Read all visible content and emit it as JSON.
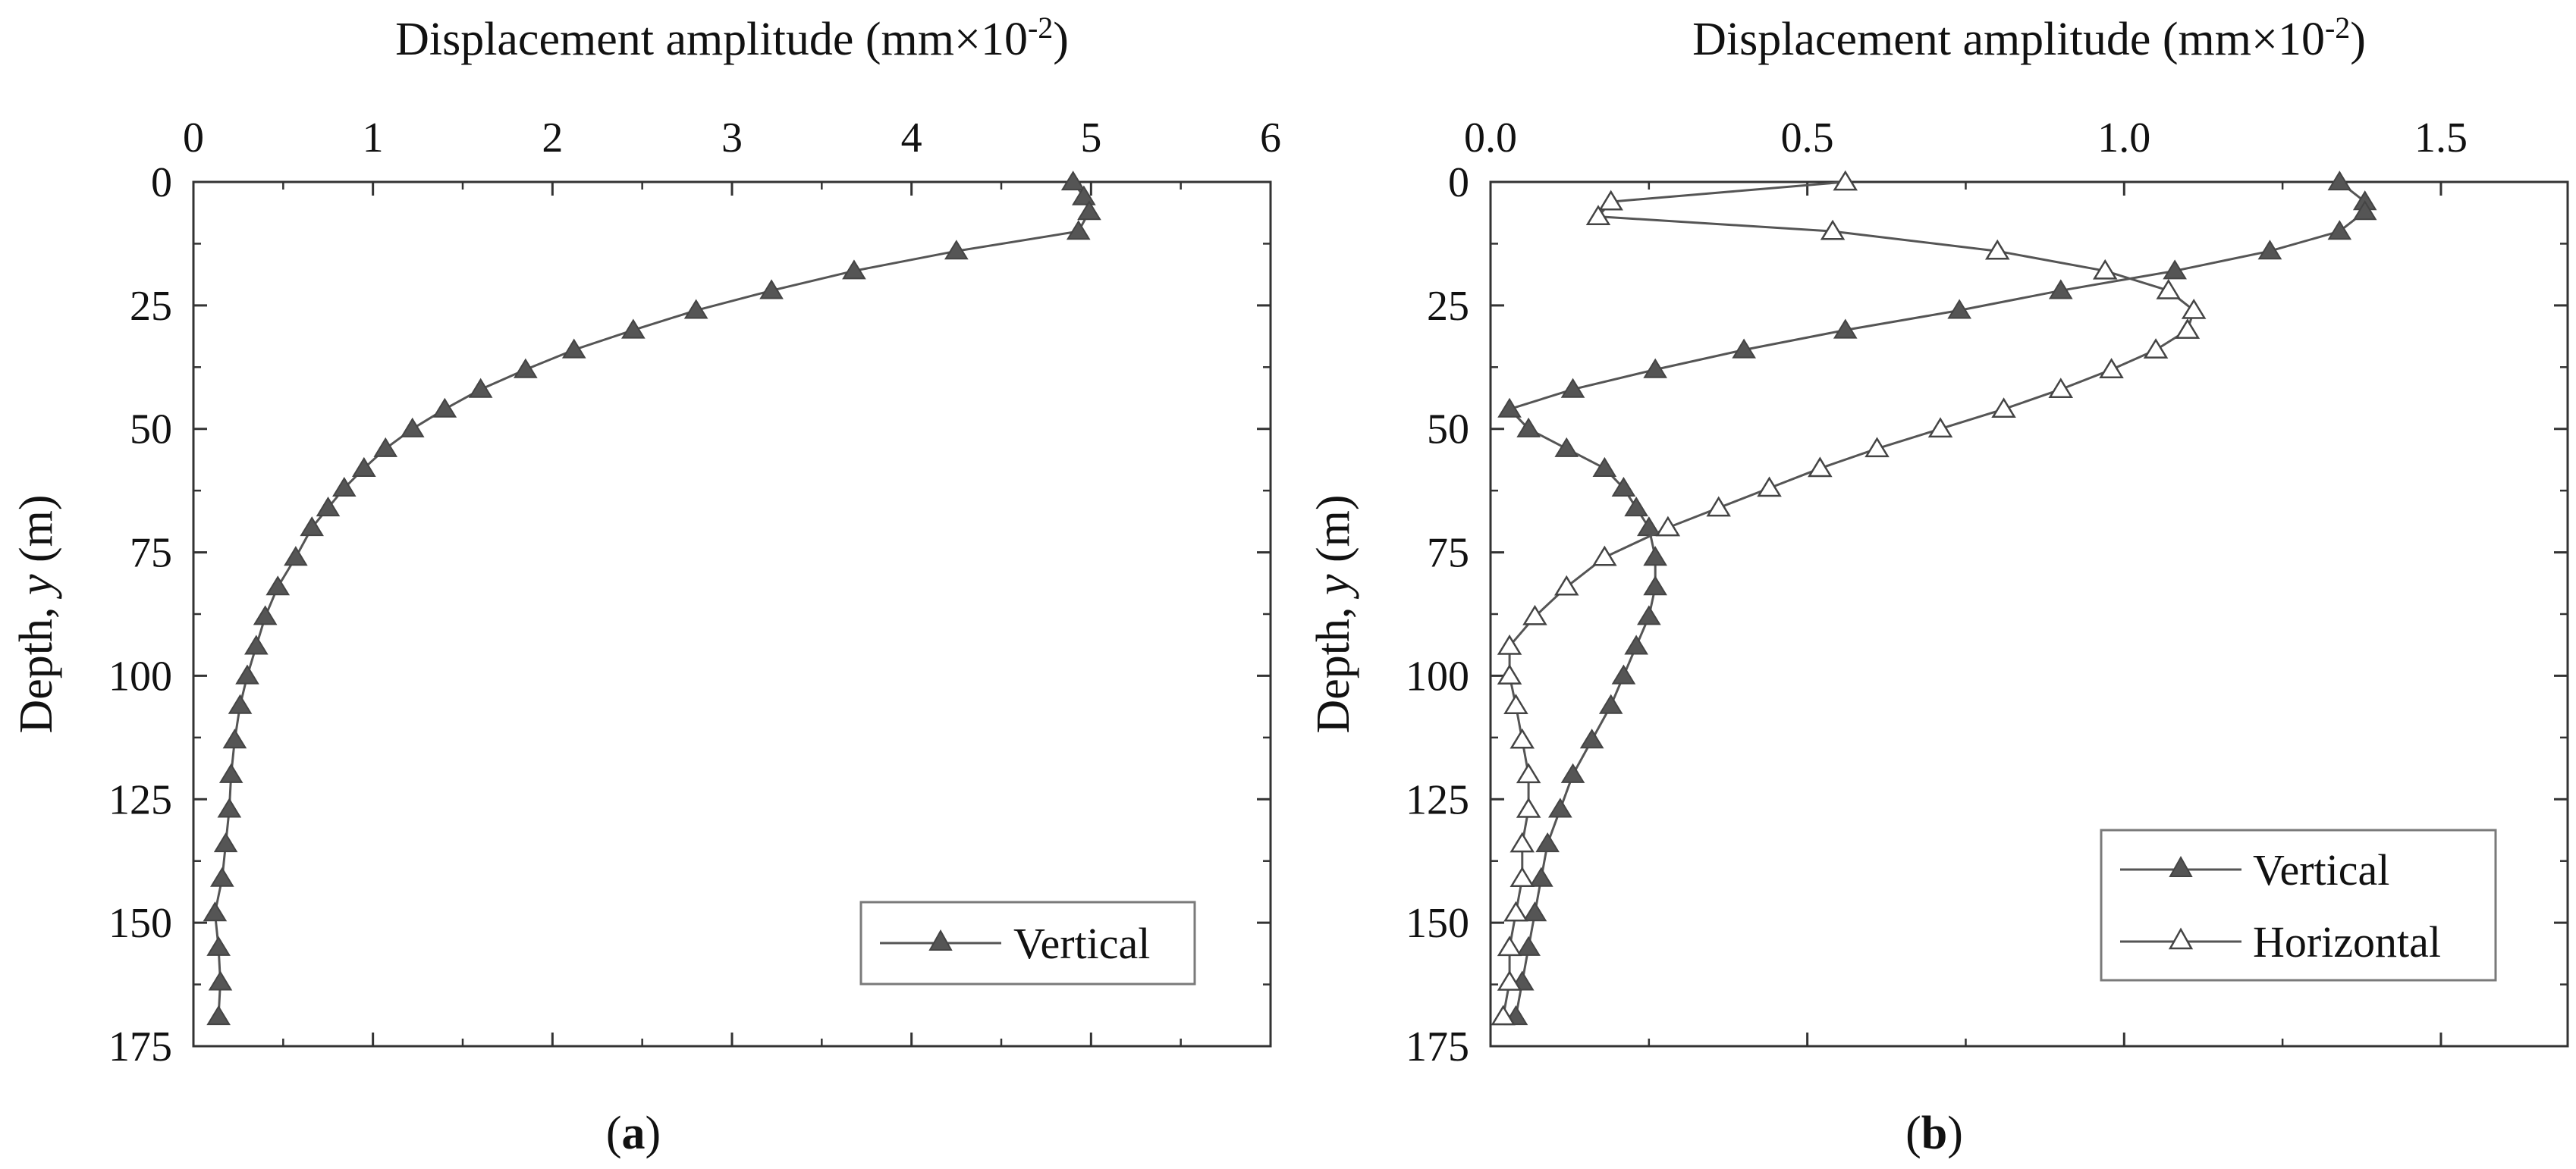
{
  "chart_data": [
    {
      "type": "line",
      "panel_label": "(a)",
      "panel_letter": "a",
      "title": "",
      "xlabel": "Displacement amplitude (mm×10",
      "xlabel_exponent": "-2",
      "xlabel_suffix": ")",
      "ylabel": "Depth, ",
      "ylabel_var": "y",
      "ylabel_unit": " (m)",
      "xlim": [
        0,
        6
      ],
      "ylim": [
        0,
        175
      ],
      "y_inverted": true,
      "x_axis_position": "top",
      "xticks": [
        0,
        1,
        2,
        3,
        4,
        5,
        6
      ],
      "xtick_labels": [
        "0",
        "1",
        "2",
        "3",
        "4",
        "5",
        "6"
      ],
      "yticks": [
        0,
        25,
        50,
        75,
        100,
        125,
        150,
        175
      ],
      "ytick_labels": [
        "0",
        "25",
        "50",
        "75",
        "100",
        "125",
        "150",
        "175"
      ],
      "grid": false,
      "legend_position": "bottom-right",
      "series": [
        {
          "name": "Vertical",
          "marker": "filled-triangle",
          "color": "#555555",
          "points": [
            [
              4.9,
              0
            ],
            [
              4.96,
              3
            ],
            [
              4.99,
              6
            ],
            [
              4.93,
              10
            ],
            [
              4.25,
              14
            ],
            [
              3.68,
              18
            ],
            [
              3.22,
              22
            ],
            [
              2.8,
              26
            ],
            [
              2.45,
              30
            ],
            [
              2.12,
              34
            ],
            [
              1.85,
              38
            ],
            [
              1.6,
              42
            ],
            [
              1.4,
              46
            ],
            [
              1.22,
              50
            ],
            [
              1.07,
              54
            ],
            [
              0.95,
              58
            ],
            [
              0.84,
              62
            ],
            [
              0.75,
              66
            ],
            [
              0.66,
              70
            ],
            [
              0.57,
              76
            ],
            [
              0.47,
              82
            ],
            [
              0.4,
              88
            ],
            [
              0.35,
              94
            ],
            [
              0.3,
              100
            ],
            [
              0.26,
              106
            ],
            [
              0.23,
              113
            ],
            [
              0.21,
              120
            ],
            [
              0.2,
              127
            ],
            [
              0.18,
              134
            ],
            [
              0.16,
              141
            ],
            [
              0.12,
              148
            ],
            [
              0.14,
              155
            ],
            [
              0.15,
              162
            ],
            [
              0.14,
              169
            ]
          ]
        }
      ]
    },
    {
      "type": "line",
      "panel_label": "(b)",
      "panel_letter": "b",
      "title": "",
      "xlabel": "Displacement amplitude (mm×10",
      "xlabel_exponent": "-2",
      "xlabel_suffix": ")",
      "ylabel": "Depth, ",
      "ylabel_var": "y",
      "ylabel_unit": " (m)",
      "xlim": [
        0,
        1.7
      ],
      "ylim": [
        0,
        175
      ],
      "y_inverted": true,
      "x_axis_position": "top",
      "xticks": [
        0,
        0.5,
        1.0,
        1.5
      ],
      "xtick_labels": [
        "0.0",
        "0.5",
        "1.0",
        "1.5"
      ],
      "yticks": [
        0,
        25,
        50,
        75,
        100,
        125,
        150,
        175
      ],
      "ytick_labels": [
        "0",
        "25",
        "50",
        "75",
        "100",
        "125",
        "150",
        "175"
      ],
      "grid": false,
      "legend_position": "bottom-right",
      "series": [
        {
          "name": "Vertical",
          "marker": "filled-triangle",
          "color": "#555555",
          "points": [
            [
              1.34,
              0
            ],
            [
              1.38,
              4
            ],
            [
              1.38,
              6
            ],
            [
              1.34,
              10
            ],
            [
              1.23,
              14
            ],
            [
              1.08,
              18
            ],
            [
              0.9,
              22
            ],
            [
              0.74,
              26
            ],
            [
              0.56,
              30
            ],
            [
              0.4,
              34
            ],
            [
              0.26,
              38
            ],
            [
              0.13,
              42
            ],
            [
              0.03,
              46
            ],
            [
              0.06,
              50
            ],
            [
              0.12,
              54
            ],
            [
              0.18,
              58
            ],
            [
              0.21,
              62
            ],
            [
              0.23,
              66
            ],
            [
              0.25,
              70
            ],
            [
              0.26,
              76
            ],
            [
              0.26,
              82
            ],
            [
              0.25,
              88
            ],
            [
              0.23,
              94
            ],
            [
              0.21,
              100
            ],
            [
              0.19,
              106
            ],
            [
              0.16,
              113
            ],
            [
              0.13,
              120
            ],
            [
              0.11,
              127
            ],
            [
              0.09,
              134
            ],
            [
              0.08,
              141
            ],
            [
              0.07,
              148
            ],
            [
              0.06,
              155
            ],
            [
              0.05,
              162
            ],
            [
              0.04,
              169
            ]
          ]
        },
        {
          "name": "Horizontal",
          "marker": "open-triangle",
          "color": "#555555",
          "points": [
            [
              0.56,
              0
            ],
            [
              0.19,
              4
            ],
            [
              0.17,
              7
            ],
            [
              0.54,
              10
            ],
            [
              0.8,
              14
            ],
            [
              0.97,
              18
            ],
            [
              1.07,
              22
            ],
            [
              1.11,
              26
            ],
            [
              1.1,
              30
            ],
            [
              1.05,
              34
            ],
            [
              0.98,
              38
            ],
            [
              0.9,
              42
            ],
            [
              0.81,
              46
            ],
            [
              0.71,
              50
            ],
            [
              0.61,
              54
            ],
            [
              0.52,
              58
            ],
            [
              0.44,
              62
            ],
            [
              0.36,
              66
            ],
            [
              0.28,
              70
            ],
            [
              0.18,
              76
            ],
            [
              0.12,
              82
            ],
            [
              0.07,
              88
            ],
            [
              0.03,
              94
            ],
            [
              0.03,
              100
            ],
            [
              0.04,
              106
            ],
            [
              0.05,
              113
            ],
            [
              0.06,
              120
            ],
            [
              0.06,
              127
            ],
            [
              0.05,
              134
            ],
            [
              0.05,
              141
            ],
            [
              0.04,
              148
            ],
            [
              0.03,
              155
            ],
            [
              0.03,
              162
            ],
            [
              0.02,
              169
            ]
          ]
        }
      ]
    }
  ]
}
